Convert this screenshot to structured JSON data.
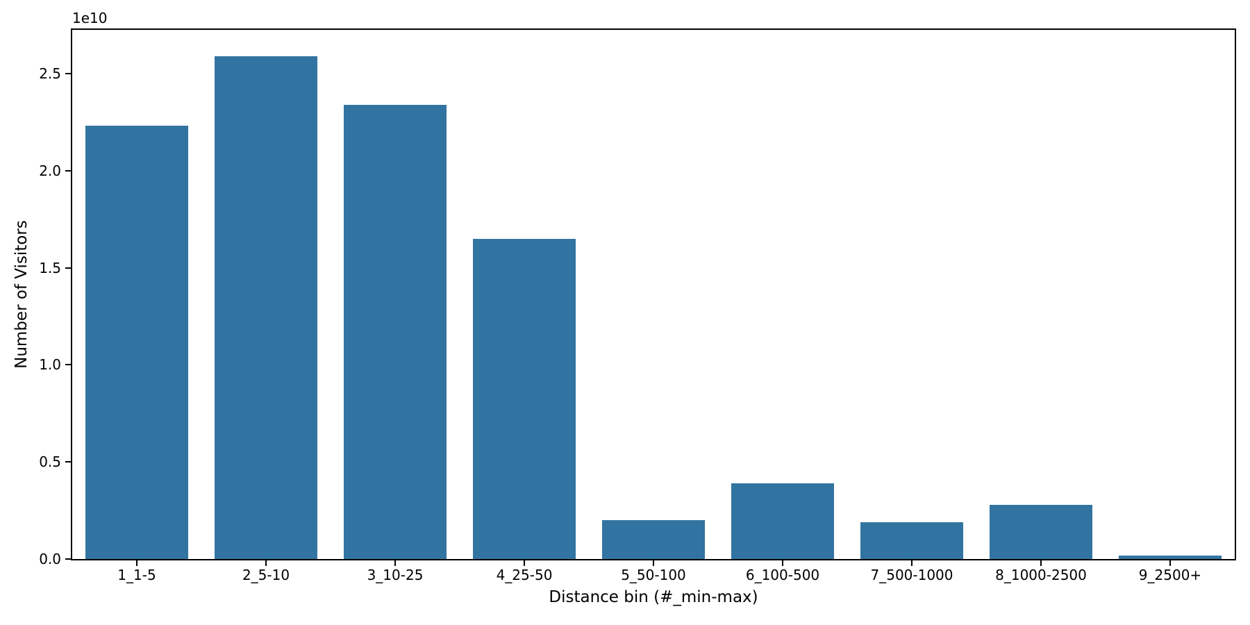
{
  "chart_data": {
    "type": "bar",
    "title": "",
    "xlabel": "Distance bin (#_min-max)",
    "ylabel": "Number of Visitors",
    "y_offset_label": "1e10",
    "categories": [
      "1_1-5",
      "2_5-10",
      "3_10-25",
      "4_25-50",
      "5_50-100",
      "6_100-500",
      "7_500-1000",
      "8_1000-2500",
      "9_2500+"
    ],
    "values": [
      22300000000,
      25900000000,
      23400000000,
      16500000000,
      2000000000,
      3900000000,
      1900000000,
      2800000000,
      180000000
    ],
    "series_name": "Number of Visitors",
    "ylim": [
      0,
      27250000000
    ],
    "yticks": [
      0,
      5000000000,
      10000000000,
      15000000000,
      20000000000,
      25000000000
    ],
    "ytick_labels": [
      "0.0",
      "0.5",
      "1.0",
      "1.5",
      "2.0",
      "2.5"
    ],
    "bar_color": "#3274a1",
    "bar_width_frac": 0.8,
    "axis_color": "#000000",
    "grid": false,
    "legend": null
  }
}
